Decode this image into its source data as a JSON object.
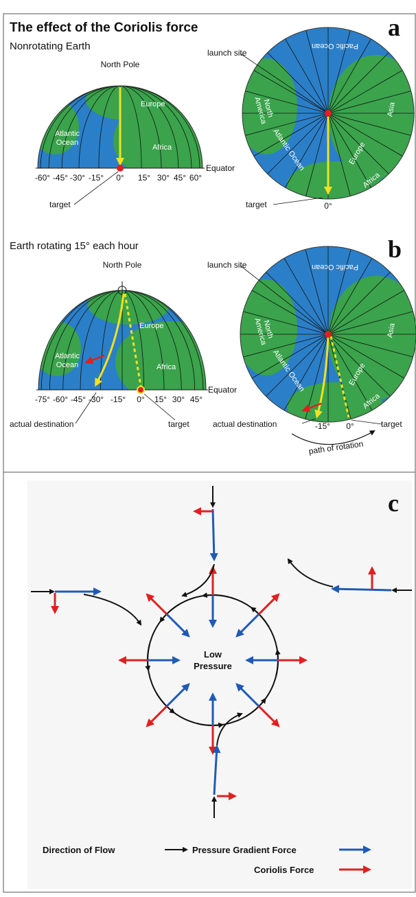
{
  "title": "The effect of the Coriolis force",
  "panel_a": {
    "letter": "a",
    "subtitle": "Nonrotating Earth",
    "north_pole": "North Pole",
    "launch_site": "launch site",
    "equator": "Equator",
    "longitudes": [
      "-60°",
      "-45°",
      "-30°",
      "-15°",
      "0°",
      "15°",
      "30°",
      "45°",
      "60°"
    ],
    "target_left": "target",
    "target_right": "target",
    "right_zero": "0°",
    "left_labels": {
      "europe": "Europe",
      "atlantic": [
        "Atlantic",
        "Ocean"
      ],
      "africa": "Africa"
    },
    "right_labels": {
      "pacific": "Pacific Ocean",
      "north_america": [
        "North",
        "America"
      ],
      "atlantic": "Atlantic Ocean",
      "asia": "Asia",
      "europe": "Europe",
      "africa": "Africa"
    }
  },
  "panel_b": {
    "letter": "b",
    "subtitle": "Earth rotating 15° each hour",
    "north_pole": "North Pole",
    "launch_site": "launch site",
    "equator": "Equator",
    "longitudes": [
      "-75°",
      "-60°",
      "-45°",
      "-30°",
      "-15°",
      "0°",
      "15°",
      "30°",
      "45°"
    ],
    "actual_destination_left": "actual destination",
    "target_left": "target",
    "actual_destination_right": "actual destination",
    "right_minus15": "-15°",
    "right_zero": "0°",
    "target_right": "target",
    "path_of_rotation": "path of rotation",
    "left_labels": {
      "europe": "Europe",
      "atlantic": [
        "Atlantic",
        "Ocean"
      ],
      "africa": "Africa"
    },
    "right_labels": {
      "pacific": "Pacific Ocean",
      "north_america": [
        "North",
        "America"
      ],
      "atlantic": "Atlantic Ocean",
      "asia": "Asia",
      "europe": "Europe",
      "africa": "Africa"
    }
  },
  "panel_c": {
    "letter": "c",
    "center": [
      "Low",
      "Pressure"
    ],
    "legend": {
      "flow": "Direction of Flow",
      "pressure": "Pressure Gradient Force",
      "coriolis": "Coriolis Force"
    }
  }
}
